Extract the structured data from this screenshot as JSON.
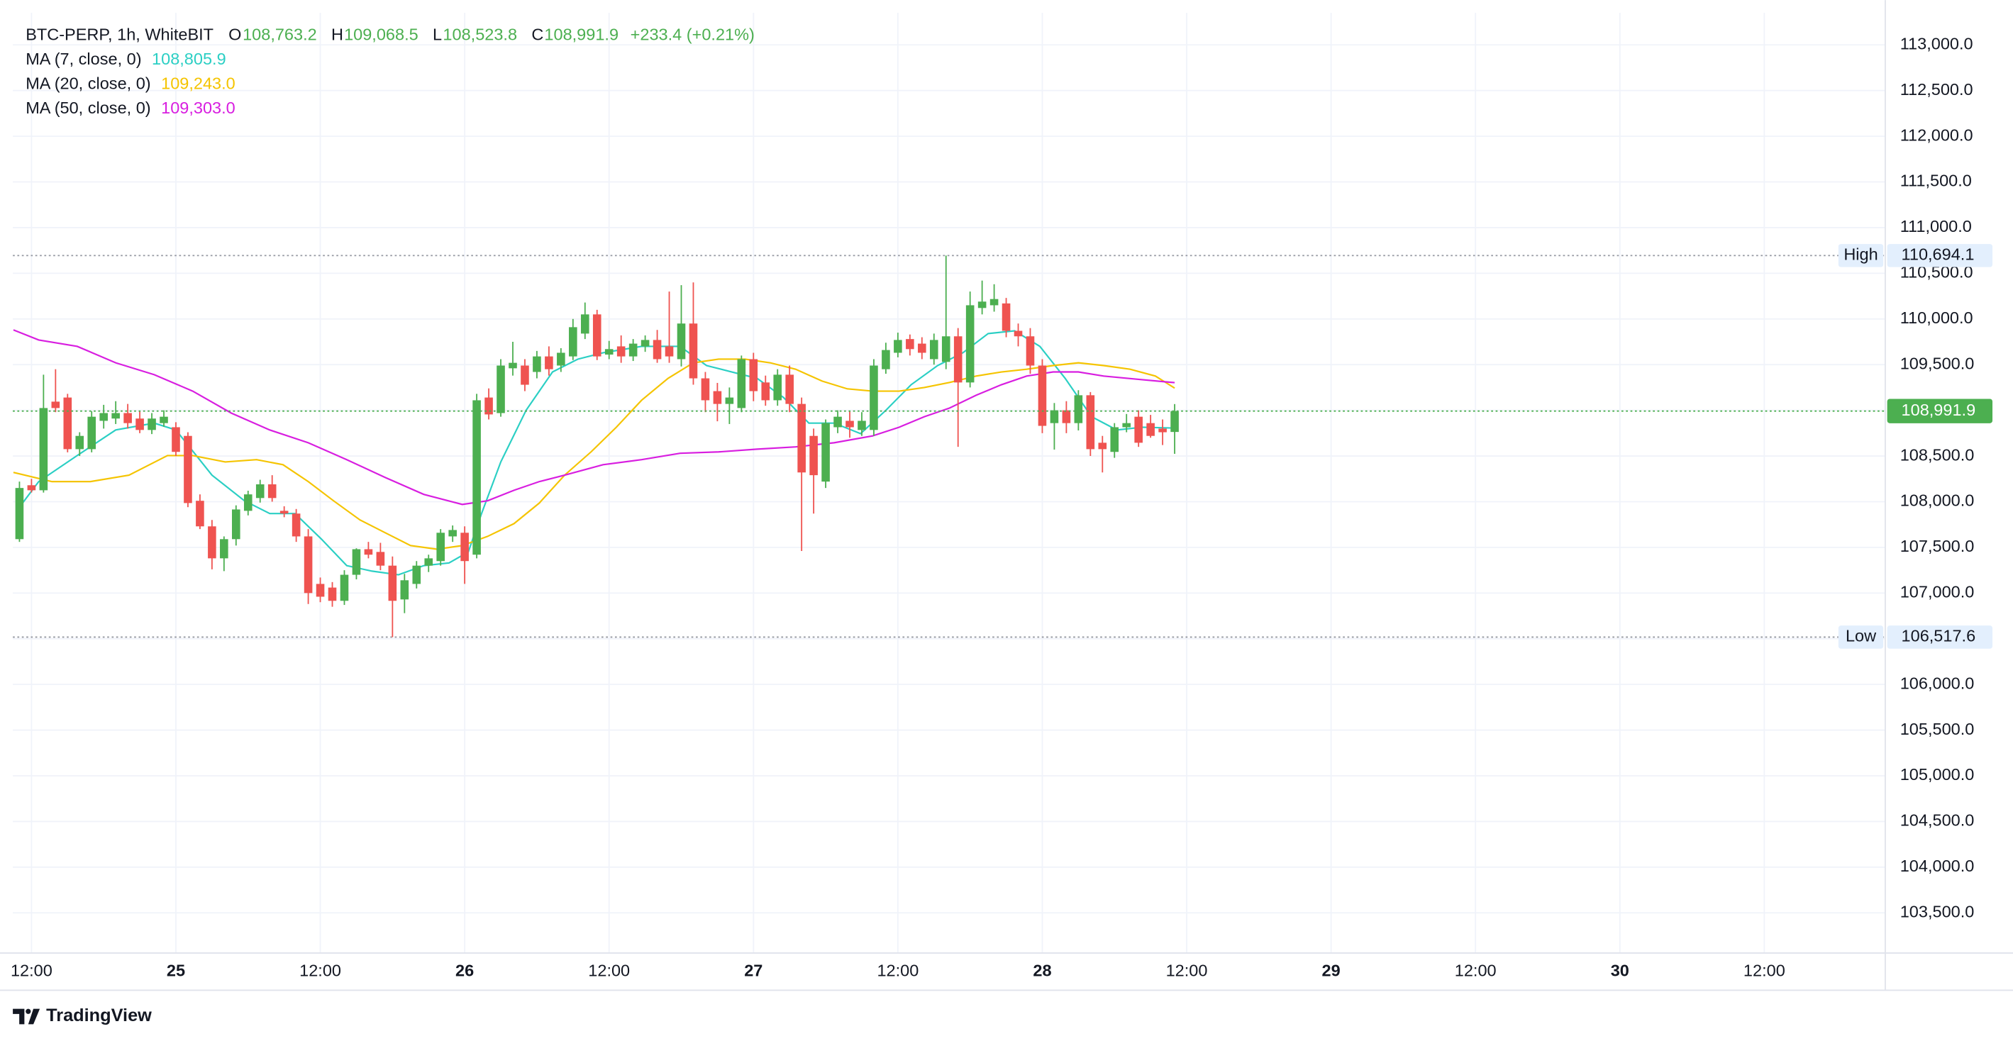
{
  "chart_data": {
    "type": "candlestick",
    "header": {
      "symbol": "BTC-PERP, 1h, WhiteBIT",
      "fields": [
        {
          "key": "O",
          "value": "108,763.2"
        },
        {
          "key": "H",
          "value": "109,068.5"
        },
        {
          "key": "L",
          "value": "108,523.8"
        },
        {
          "key": "C",
          "value": "108,991.9"
        }
      ],
      "change": "+233.4 (+0.21%)"
    },
    "up_color": "#4caf50",
    "down_color": "#ef5350",
    "x": [
      -13,
      -12,
      -11,
      -10,
      -9,
      -8,
      -7,
      -6,
      -5,
      -4,
      -3,
      -2,
      -1,
      0,
      1,
      2,
      3,
      4,
      5,
      6,
      7,
      8,
      9,
      10,
      11,
      12,
      13,
      14,
      15,
      16,
      17,
      18,
      19,
      20,
      21,
      22,
      23,
      24,
      25,
      26,
      27,
      28,
      29,
      30,
      31,
      32,
      33,
      34,
      35,
      36,
      37,
      38,
      39,
      40,
      41,
      42,
      43,
      44,
      45,
      46,
      47,
      48,
      49,
      50,
      51,
      52,
      53,
      54,
      55,
      56,
      57,
      58,
      59,
      60,
      61,
      62,
      63,
      64,
      65,
      66,
      67,
      68,
      69,
      70,
      71,
      72,
      73,
      74,
      75,
      76,
      77,
      78,
      79,
      80,
      81,
      82,
      83
    ],
    "open": [
      107590,
      108180,
      108125,
      109095,
      109140,
      108575,
      108575,
      108885,
      108910,
      108970,
      108910,
      108785,
      108860,
      108815,
      108720,
      108010,
      107730,
      107380,
      107590,
      107900,
      108040,
      108190,
      107900,
      107870,
      107620,
      107100,
      107060,
      106915,
      107200,
      107480,
      107450,
      107300,
      106930,
      107100,
      107300,
      107350,
      107620,
      107660,
      107420,
      109140,
      108970,
      109460,
      109490,
      109420,
      109590,
      109490,
      109590,
      109840,
      110050,
      109610,
      109700,
      109590,
      109700,
      109770,
      109700,
      109560,
      109950,
      109350,
      109210,
      109070,
      109025,
      109560,
      109305,
      109110,
      109390,
      109070,
      108720,
      108220,
      108815,
      108885,
      108785,
      108785,
      109450,
      109630,
      109780,
      109730,
      109560,
      109530,
      109810,
      109305,
      110120,
      110150,
      110170,
      109870,
      109810,
      109490,
      108860,
      109000,
      108860,
      109165,
      108645,
      108545,
      108815,
      108930,
      108860,
      108800,
      108763.2
    ],
    "high": [
      108220,
      108250,
      109390,
      109450,
      109180,
      108760,
      108990,
      109060,
      109100,
      109070,
      108990,
      108970,
      109000,
      108870,
      108760,
      108080,
      107800,
      107620,
      107960,
      108120,
      108240,
      108290,
      107950,
      107920,
      107700,
      107170,
      107120,
      107250,
      107490,
      107560,
      107550,
      107400,
      107210,
      107350,
      107420,
      107700,
      107740,
      107730,
      109180,
      109240,
      109560,
      109750,
      109560,
      109650,
      109700,
      109680,
      110000,
      110180,
      110100,
      109760,
      109820,
      109780,
      109820,
      109880,
      110300,
      110370,
      110400,
      109420,
      109300,
      109250,
      109600,
      109630,
      109380,
      109450,
      109490,
      109140,
      108800,
      108900,
      109000,
      108990,
      108980,
      109560,
      109740,
      109850,
      109830,
      109800,
      109840,
      110694.1,
      109900,
      110300,
      110420,
      110380,
      110230,
      109950,
      109900,
      109560,
      109080,
      109100,
      109220,
      109200,
      108720,
      108860,
      108960,
      109000,
      108950,
      108900,
      109068.5
    ],
    "low": [
      107560,
      108100,
      108100,
      108980,
      108540,
      108500,
      108540,
      108800,
      108850,
      108800,
      108750,
      108740,
      108820,
      108500,
      107940,
      107700,
      107260,
      107240,
      107520,
      107850,
      107990,
      108000,
      107830,
      107560,
      106880,
      106900,
      106850,
      106870,
      107150,
      107380,
      107250,
      106517.6,
      106780,
      107050,
      107230,
      107300,
      107560,
      107100,
      107380,
      108900,
      108930,
      109380,
      109210,
      109350,
      109380,
      109420,
      109550,
      109780,
      109550,
      109560,
      109520,
      109540,
      109640,
      109520,
      109520,
      109480,
      109280,
      108980,
      108880,
      108850,
      108980,
      109100,
      109050,
      109050,
      108980,
      107460,
      107870,
      108150,
      108750,
      108700,
      108720,
      108720,
      109400,
      109580,
      109600,
      109560,
      109500,
      109450,
      108600,
      109250,
      110050,
      110080,
      109800,
      109700,
      109400,
      108750,
      108570,
      108750,
      108780,
      108500,
      108320,
      108480,
      108760,
      108600,
      108700,
      108620,
      108523.8
    ],
    "close": [
      108150,
      108125,
      109025,
      109025,
      108575,
      108720,
      108930,
      108970,
      108970,
      108860,
      108785,
      108910,
      108930,
      108545,
      107985,
      107730,
      107380,
      107590,
      107915,
      108080,
      108190,
      108040,
      107870,
      107620,
      107000,
      106960,
      106915,
      107200,
      107480,
      107420,
      107300,
      106915,
      107140,
      107300,
      107380,
      107660,
      107690,
      107350,
      109110,
      108955,
      109490,
      109520,
      109280,
      109590,
      109450,
      109630,
      109910,
      110050,
      109590,
      109670,
      109590,
      109730,
      109770,
      109560,
      109590,
      109950,
      109350,
      109110,
      109070,
      109140,
      109560,
      109210,
      109110,
      109390,
      109070,
      108320,
      108290,
      108860,
      108930,
      108815,
      108885,
      109490,
      109660,
      109770,
      109670,
      109630,
      109770,
      109810,
      109305,
      110150,
      110190,
      110218,
      109870,
      109810,
      109490,
      108830,
      109000,
      108860,
      109165,
      108575,
      108575,
      108815,
      108860,
      108645,
      108720,
      108760,
      108991.9
    ],
    "overlays": [
      {
        "name": "MA (7, close, 0)",
        "color": "#2bcfc4",
        "last_value_label": "108,805.9",
        "x": [
          -13,
          -11.4,
          -8.2,
          -5,
          -1.8,
          0,
          3,
          5.7,
          7.8,
          9.9,
          12.1,
          14.2,
          16.3,
          18.5,
          20.6,
          22.7,
          24.3,
          25.4,
          27,
          29.1,
          31.3,
          33.4,
          35.5,
          38.7,
          41.9,
          44.1,
          46.2,
          48.3,
          50.5,
          52.6,
          54.7,
          56.9,
          59,
          61.1,
          63.3,
          65.4,
          67.5,
          69.7,
          71.8,
          73.9,
          76.1,
          78.2,
          80.3,
          83
        ],
        "values": [
          107940,
          108220,
          108505,
          108785,
          108860,
          108785,
          108290,
          108010,
          107870,
          107870,
          107590,
          107300,
          107240,
          107200,
          107300,
          107330,
          107450,
          107870,
          108435,
          109000,
          109420,
          109560,
          109630,
          109700,
          109700,
          109490,
          109420,
          109350,
          109140,
          108860,
          108860,
          108745,
          109000,
          109280,
          109490,
          109630,
          109840,
          109870,
          109700,
          109350,
          108930,
          108785,
          108815,
          108805.9
        ]
      },
      {
        "name": "MA (20, close, 0)",
        "color": "#f5c400",
        "last_value_label": "109,243.0",
        "x": [
          -13.5,
          -10.3,
          -7.1,
          -3.9,
          -0.7,
          1.4,
          4.1,
          6.7,
          8.9,
          11,
          13.1,
          15.3,
          17.4,
          19.5,
          21.7,
          23.8,
          25.9,
          28.1,
          30.2,
          32.3,
          34.5,
          36.6,
          38.7,
          40.9,
          43,
          45.1,
          47.3,
          49.4,
          51.5,
          53.7,
          55.8,
          57.9,
          60.1,
          62.2,
          64.3,
          66.5,
          68.6,
          70.7,
          72.9,
          75,
          77.1,
          79.3,
          81.4,
          83
        ],
        "values": [
          108320,
          108220,
          108220,
          108290,
          108505,
          108505,
          108435,
          108460,
          108405,
          108220,
          108010,
          107800,
          107660,
          107520,
          107480,
          107520,
          107620,
          107760,
          107985,
          108290,
          108545,
          108815,
          109110,
          109350,
          109520,
          109560,
          109560,
          109520,
          109450,
          109320,
          109235,
          109210,
          109210,
          109250,
          109305,
          109375,
          109420,
          109450,
          109490,
          109520,
          109490,
          109450,
          109375,
          109243.0
        ]
      },
      {
        "name": "MA (50, close, 0)",
        "color": "#d81ee0",
        "last_value_label": "109,303.0",
        "x": [
          -13.5,
          -11.4,
          -8.2,
          -5,
          -1.8,
          1.4,
          4.6,
          7.8,
          11,
          14.2,
          17.4,
          20.6,
          23.8,
          25.9,
          28.1,
          30.2,
          32.3,
          35.5,
          38.7,
          41.9,
          45.1,
          48.3,
          51.5,
          54.7,
          57.9,
          60.1,
          62.2,
          64.3,
          66.5,
          68.6,
          70.7,
          72.9,
          75,
          77.1,
          80.3,
          83
        ],
        "values": [
          109880,
          109770,
          109700,
          109520,
          109390,
          109210,
          108970,
          108785,
          108645,
          108460,
          108265,
          108080,
          107970,
          108010,
          108125,
          108220,
          108290,
          108405,
          108460,
          108530,
          108545,
          108575,
          108600,
          108645,
          108720,
          108815,
          108930,
          109025,
          109165,
          109280,
          109375,
          109420,
          109420,
          109375,
          109335,
          109303.0
        ]
      }
    ],
    "xlim": [
      -13.55,
      142.0
    ],
    "xticks": [
      {
        "value": -12,
        "label": "12:00"
      },
      {
        "value": 0,
        "label": "25"
      },
      {
        "value": 12,
        "label": "12:00"
      },
      {
        "value": 24,
        "label": "26"
      },
      {
        "value": 36,
        "label": "12:00"
      },
      {
        "value": 48,
        "label": "27"
      },
      {
        "value": 60,
        "label": "12:00"
      },
      {
        "value": 72,
        "label": "28"
      },
      {
        "value": 84,
        "label": "12:00"
      },
      {
        "value": 96,
        "label": "29"
      },
      {
        "value": 108,
        "label": "12:00"
      },
      {
        "value": 120,
        "label": "30"
      },
      {
        "value": 132,
        "label": "12:00"
      }
    ],
    "ylim": [
      103067,
      113350
    ],
    "yticks": [
      {
        "value": 103500,
        "label": "103,500.0"
      },
      {
        "value": 104000,
        "label": "104,000.0"
      },
      {
        "value": 104500,
        "label": "104,500.0"
      },
      {
        "value": 105000,
        "label": "105,000.0"
      },
      {
        "value": 105500,
        "label": "105,500.0"
      },
      {
        "value": 106000,
        "label": "106,000.0"
      },
      {
        "value": 106500,
        "label": "106,500.0"
      },
      {
        "value": 107000,
        "label": "107,000.0"
      },
      {
        "value": 107500,
        "label": "107,500.0"
      },
      {
        "value": 108000,
        "label": "108,000.0"
      },
      {
        "value": 108500,
        "label": "108,500.0"
      },
      {
        "value": 109000,
        "label": "109,000.0"
      },
      {
        "value": 109500,
        "label": "109,500.0"
      },
      {
        "value": 110000,
        "label": "110,000.0"
      },
      {
        "value": 110500,
        "label": "110,500.0"
      },
      {
        "value": 111000,
        "label": "111,000.0"
      },
      {
        "value": 111500,
        "label": "111,500.0"
      },
      {
        "value": 112000,
        "label": "112,000.0"
      },
      {
        "value": 112500,
        "label": "112,500.0"
      },
      {
        "value": 113000,
        "label": "113,000.0"
      }
    ],
    "grid": true,
    "high_marker": {
      "label": "High",
      "value": 110694.1,
      "value_label": "110,694.1"
    },
    "low_marker": {
      "label": "Low",
      "value": 106517.6,
      "value_label": "106,517.6"
    },
    "last_price": {
      "value": 108991.9,
      "label": "108,991.9",
      "color": "#4caf50"
    }
  },
  "footer": {
    "brand": "TradingView"
  }
}
